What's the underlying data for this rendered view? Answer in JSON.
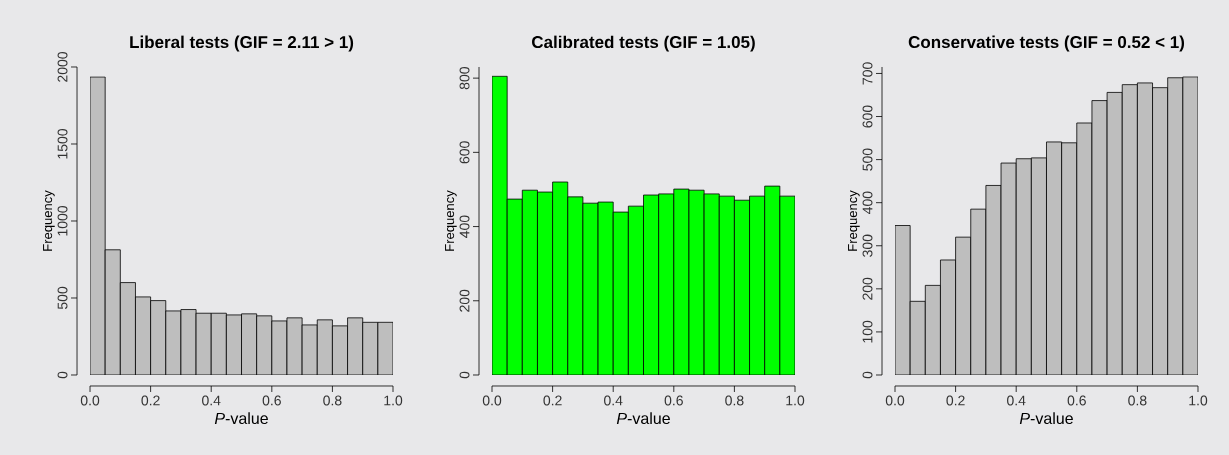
{
  "chart_data": [
    {
      "type": "histogram",
      "title": "Liberal tests (GIF = 2.11 > 1)",
      "xlabel": "*P*-value",
      "ylabel": "Frequency",
      "color": "#bebebe",
      "bins": [
        0,
        0.05,
        0.1,
        0.15,
        0.2,
        0.25,
        0.3,
        0.35,
        0.4,
        0.45,
        0.5,
        0.55,
        0.6,
        0.65,
        0.7,
        0.75,
        0.8,
        0.85,
        0.9,
        0.95,
        1.0
      ],
      "values": [
        1935,
        813,
        600,
        507,
        483,
        416,
        425,
        401,
        401,
        390,
        397,
        384,
        351,
        371,
        325,
        358,
        319,
        371,
        342,
        342
      ],
      "xlim": [
        0,
        1
      ],
      "ylim": [
        0,
        2000
      ],
      "xticks": [
        {
          "value": 0,
          "label": "0.0"
        },
        {
          "value": 0.2,
          "label": "0.2"
        },
        {
          "value": 0.4,
          "label": "0.4"
        },
        {
          "value": 0.6,
          "label": "0.6"
        },
        {
          "value": 0.8,
          "label": "0.8"
        },
        {
          "value": 1,
          "label": "1.0"
        }
      ],
      "yticks": [
        0,
        500,
        1000,
        1500,
        2000
      ]
    },
    {
      "type": "histogram",
      "title": "Calibrated tests (GIF = 1.05)",
      "xlabel": "*P*-value",
      "ylabel": "Frequency",
      "color": "#00ff00",
      "bins": [
        0,
        0.05,
        0.1,
        0.15,
        0.2,
        0.25,
        0.3,
        0.35,
        0.4,
        0.45,
        0.5,
        0.55,
        0.6,
        0.65,
        0.7,
        0.75,
        0.8,
        0.85,
        0.9,
        0.95,
        1.0
      ],
      "values": [
        805,
        474,
        498,
        493,
        520,
        480,
        463,
        466,
        439,
        455,
        485,
        488,
        501,
        498,
        488,
        482,
        471,
        482,
        509,
        482
      ],
      "xlim": [
        0,
        1
      ],
      "ylim": [
        0,
        830
      ],
      "xticks": [
        {
          "value": 0,
          "label": "0.0"
        },
        {
          "value": 0.2,
          "label": "0.2"
        },
        {
          "value": 0.4,
          "label": "0.4"
        },
        {
          "value": 0.6,
          "label": "0.6"
        },
        {
          "value": 0.8,
          "label": "0.8"
        },
        {
          "value": 1,
          "label": "1.0"
        }
      ],
      "yticks": [
        0,
        200,
        400,
        600,
        800
      ]
    },
    {
      "type": "histogram",
      "title": "Conservative tests (GIF = 0.52 < 1)",
      "xlabel": "*P*-value",
      "ylabel": "Frequency",
      "color": "#bebebe",
      "bins": [
        0,
        0.05,
        0.1,
        0.15,
        0.2,
        0.25,
        0.3,
        0.35,
        0.4,
        0.45,
        0.5,
        0.55,
        0.6,
        0.65,
        0.7,
        0.75,
        0.8,
        0.85,
        0.9,
        0.95,
        1.0
      ],
      "values": [
        347,
        171,
        208,
        267,
        320,
        385,
        440,
        492,
        502,
        504,
        541,
        539,
        585,
        637,
        656,
        674,
        678,
        667,
        690,
        692
      ],
      "xlim": [
        0,
        1
      ],
      "ylim": [
        0,
        715
      ],
      "xticks": [
        {
          "value": 0,
          "label": "0.0"
        },
        {
          "value": 0.2,
          "label": "0.2"
        },
        {
          "value": 0.4,
          "label": "0.4"
        },
        {
          "value": 0.6,
          "label": "0.6"
        },
        {
          "value": 0.8,
          "label": "0.8"
        },
        {
          "value": 1,
          "label": "1.0"
        }
      ],
      "yticks": [
        0,
        100,
        200,
        300,
        400,
        500,
        600,
        700
      ]
    }
  ]
}
